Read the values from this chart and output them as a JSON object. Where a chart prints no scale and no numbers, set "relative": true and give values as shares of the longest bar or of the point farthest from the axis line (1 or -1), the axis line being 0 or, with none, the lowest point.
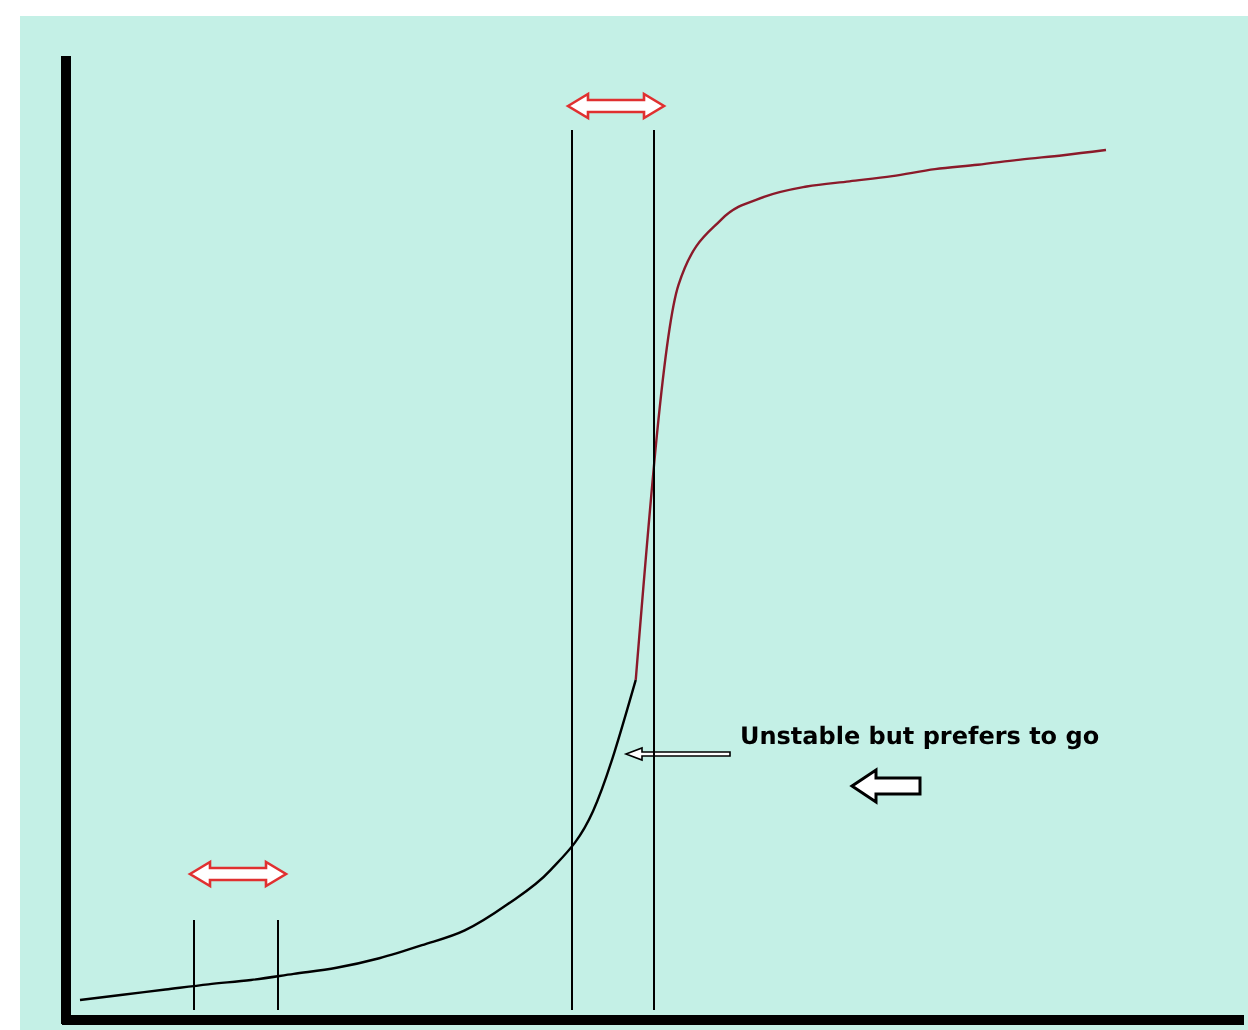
{
  "chart_data": {
    "type": "line",
    "relative": true,
    "marker": "none",
    "line_style": "solid",
    "categories": [
      null,
      null,
      null,
      null,
      null,
      null,
      null,
      null,
      null,
      null,
      null,
      null,
      null,
      null,
      null,
      null,
      null,
      null,
      null,
      null,
      null,
      null,
      null,
      null,
      null
    ],
    "series": [
      {
        "color": "#000000",
        "values": [
          0.023,
          0.029,
          0.035,
          0.041,
          0.046,
          0.053,
          0.06,
          0.071,
          0.086,
          0.103,
          0.133,
          0.172,
          0.24,
          0.391,
          null,
          null,
          null,
          null,
          null,
          null,
          null,
          null,
          null,
          null,
          null
        ]
      },
      {
        "color": "#8b1a2a",
        "values": [
          null,
          null,
          null,
          null,
          null,
          null,
          null,
          null,
          null,
          null,
          null,
          null,
          null,
          0.391,
          0.845,
          0.92,
          0.946,
          0.958,
          0.964,
          0.97,
          0.978,
          0.983,
          0.989,
          0.994,
          1
        ]
      }
    ],
    "annotations": [
      "Unstable but prefers to go"
    ]
  }
}
